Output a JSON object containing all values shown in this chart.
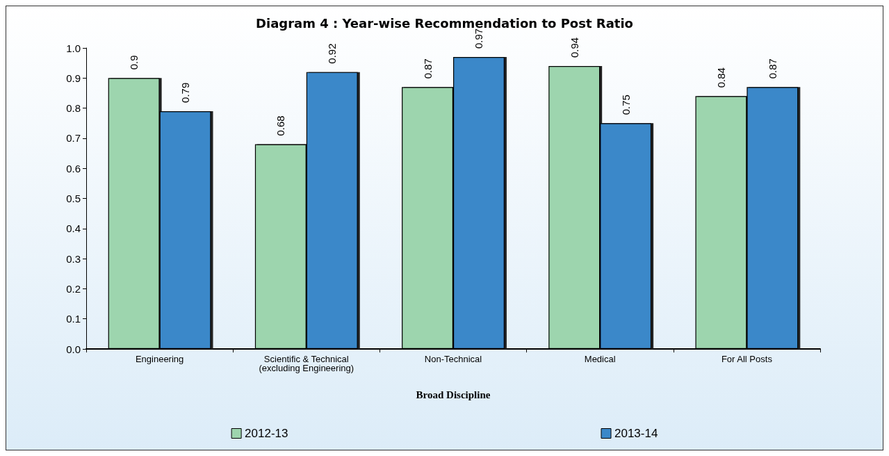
{
  "chart_data": {
    "type": "bar",
    "title": "Diagram 4 : Year-wise Recommendation to Post Ratio",
    "xlabel": "Broad Discipline",
    "categories": [
      "Engineering",
      "Scientific & Technical\n(excluding Engineering)",
      "Non-Technical",
      "Medical",
      "For All Posts"
    ],
    "series": [
      {
        "name": "2012-13",
        "color": "#9dd5ae",
        "values": [
          0.9,
          0.68,
          0.87,
          0.94,
          0.84
        ]
      },
      {
        "name": "2013-14",
        "color": "#3a88c9",
        "values": [
          0.79,
          0.92,
          0.97,
          0.75,
          0.87
        ]
      }
    ],
    "ylim": [
      0,
      1
    ],
    "yticks": [
      {
        "value": 0,
        "label": "0.0"
      },
      {
        "value": 0.1,
        "label": "0.1"
      },
      {
        "value": 0.2,
        "label": "0.2"
      },
      {
        "value": 0.3,
        "label": "0.3"
      },
      {
        "value": 0.4,
        "label": "0.4"
      },
      {
        "value": 0.5,
        "label": "0.5"
      },
      {
        "value": 0.6,
        "label": "0.6"
      },
      {
        "value": 0.7,
        "label": "0.7"
      },
      {
        "value": 0.8,
        "label": "0.8"
      },
      {
        "value": 0.9,
        "label": "0.9"
      },
      {
        "value": 1,
        "label": "1.0"
      }
    ],
    "data_labels": true,
    "grid": false,
    "legend": "bottom"
  }
}
